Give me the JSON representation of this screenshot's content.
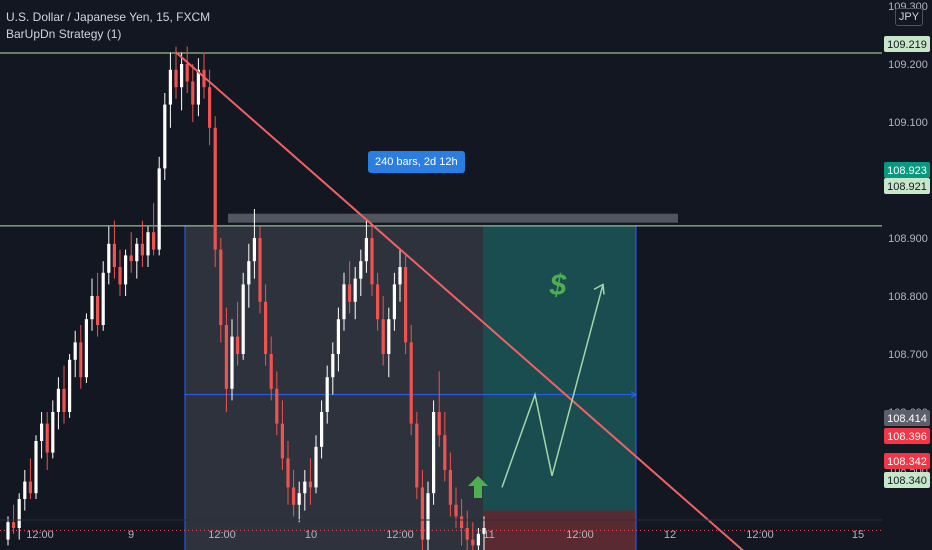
{
  "header": {
    "symbol_line": "U.S. Dollar / Japanese Yen, 15, FXCM",
    "indicator_line": "BarUpDn Strategy (1)",
    "currency": "JPY"
  },
  "range_label": "240 bars, 2d 12h",
  "colors": {
    "background": "#131722",
    "up": "#ffffff",
    "down": "#ef5350",
    "trendline": "#f06262",
    "level_line": "#b7e4a6",
    "mid_line": "#2962ff",
    "target_zone": "#26a69a",
    "stop_zone": "#ef5350",
    "arrow": "#4caf50"
  },
  "chart_data": {
    "type": "candlestick",
    "title": "U.S. Dollar / Japanese Yen, 15, FXCM",
    "ylim": [
      108.3,
      109.3
    ],
    "y_ticks": [
      "109.300",
      "109.200",
      "109.100",
      "109.000",
      "108.900",
      "108.800",
      "108.700",
      "108.600",
      "108.500"
    ],
    "x_ticks": [
      "12:00",
      "9",
      "12:00",
      "10",
      "12:00",
      "11",
      "12:00",
      "12",
      "12:00",
      "15"
    ],
    "price_labels": [
      {
        "value": "109.219",
        "kind": "level"
      },
      {
        "value": "108.923",
        "kind": "teal"
      },
      {
        "value": "108.921",
        "kind": "level"
      },
      {
        "value": "108.414",
        "kind": "gray"
      },
      {
        "value": "108.396",
        "kind": "red"
      },
      {
        "value": "108.342",
        "kind": "red"
      },
      {
        "value": "108.340",
        "kind": "level"
      }
    ],
    "horizontal_levels": [
      109.219,
      108.921,
      108.34
    ],
    "current_price": 108.396,
    "mid_level": 108.63,
    "resistance_zone": [
      108.921,
      108.935
    ],
    "support_zone": [
      108.33,
      108.345
    ],
    "target_zone": [
      108.43,
      108.921
    ],
    "stop_zone": [
      108.34,
      108.43
    ],
    "trendline": [
      {
        "x": "9 06:00",
        "y": 109.22
      },
      {
        "x": "12 10:00",
        "y": 108.34
      }
    ],
    "projection_path": [
      108.47,
      108.63,
      108.49,
      108.82
    ],
    "annotation": "$",
    "candles": [
      [
        108.38,
        108.42,
        108.37,
        108.41
      ],
      [
        108.41,
        108.44,
        108.39,
        108.4
      ],
      [
        108.4,
        108.46,
        108.38,
        108.45
      ],
      [
        108.45,
        108.5,
        108.43,
        108.48
      ],
      [
        108.48,
        108.52,
        108.45,
        108.46
      ],
      [
        108.46,
        108.56,
        108.45,
        108.55
      ],
      [
        108.55,
        108.6,
        108.52,
        108.58
      ],
      [
        108.58,
        108.6,
        108.5,
        108.53
      ],
      [
        108.53,
        108.62,
        108.52,
        108.6
      ],
      [
        108.6,
        108.66,
        108.57,
        108.64
      ],
      [
        108.64,
        108.68,
        108.58,
        108.6
      ],
      [
        108.6,
        108.7,
        108.59,
        108.69
      ],
      [
        108.69,
        108.74,
        108.66,
        108.72
      ],
      [
        108.72,
        108.75,
        108.64,
        108.66
      ],
      [
        108.66,
        108.77,
        108.65,
        108.76
      ],
      [
        108.76,
        108.83,
        108.74,
        108.8
      ],
      [
        108.8,
        108.84,
        108.73,
        108.75
      ],
      [
        108.75,
        108.86,
        108.74,
        108.84
      ],
      [
        108.84,
        108.92,
        108.82,
        108.89
      ],
      [
        108.89,
        108.93,
        108.83,
        108.85
      ],
      [
        108.85,
        108.88,
        108.8,
        108.82
      ],
      [
        108.82,
        108.88,
        108.8,
        108.87
      ],
      [
        108.87,
        108.91,
        108.84,
        108.86
      ],
      [
        108.86,
        108.9,
        108.83,
        108.89
      ],
      [
        108.89,
        108.93,
        108.85,
        108.87
      ],
      [
        108.87,
        108.92,
        108.85,
        108.91
      ],
      [
        108.91,
        108.96,
        108.87,
        108.88
      ],
      [
        108.88,
        109.04,
        108.87,
        109.02
      ],
      [
        109.02,
        109.15,
        109.0,
        109.13
      ],
      [
        109.13,
        109.22,
        109.09,
        109.19
      ],
      [
        109.19,
        109.23,
        109.14,
        109.16
      ],
      [
        109.16,
        109.22,
        109.12,
        109.2
      ],
      [
        109.2,
        109.23,
        109.15,
        109.17
      ],
      [
        109.17,
        109.2,
        109.1,
        109.13
      ],
      [
        109.13,
        109.21,
        109.11,
        109.19
      ],
      [
        109.19,
        109.22,
        109.14,
        109.16
      ],
      [
        109.16,
        109.19,
        109.06,
        109.09
      ],
      [
        109.09,
        109.11,
        108.85,
        108.88
      ],
      [
        108.88,
        108.9,
        108.72,
        108.75
      ],
      [
        108.75,
        108.78,
        108.6,
        108.64
      ],
      [
        108.64,
        108.76,
        108.62,
        108.73
      ],
      [
        108.73,
        108.79,
        108.68,
        108.7
      ],
      [
        108.7,
        108.84,
        108.69,
        108.82
      ],
      [
        108.82,
        108.89,
        108.78,
        108.86
      ],
      [
        108.86,
        108.95,
        108.83,
        108.9
      ],
      [
        108.9,
        108.92,
        108.77,
        108.79
      ],
      [
        108.79,
        108.82,
        108.68,
        108.7
      ],
      [
        108.7,
        108.73,
        108.62,
        108.64
      ],
      [
        108.64,
        108.67,
        108.56,
        108.58
      ],
      [
        108.58,
        108.62,
        108.5,
        108.52
      ],
      [
        108.52,
        108.55,
        108.44,
        108.47
      ],
      [
        108.47,
        108.5,
        108.42,
        108.44
      ],
      [
        108.44,
        108.48,
        108.41,
        108.46
      ],
      [
        108.46,
        108.5,
        108.43,
        108.48
      ],
      [
        108.48,
        108.52,
        108.44,
        108.47
      ],
      [
        108.47,
        108.56,
        108.46,
        108.54
      ],
      [
        108.54,
        108.62,
        108.52,
        108.6
      ],
      [
        108.6,
        108.68,
        108.58,
        108.66
      ],
      [
        108.66,
        108.72,
        108.63,
        108.7
      ],
      [
        108.7,
        108.78,
        108.67,
        108.76
      ],
      [
        108.76,
        108.84,
        108.74,
        108.82
      ],
      [
        108.82,
        108.86,
        108.77,
        108.79
      ],
      [
        108.79,
        108.85,
        108.76,
        108.83
      ],
      [
        108.83,
        108.88,
        108.8,
        108.86
      ],
      [
        108.86,
        108.93,
        108.84,
        108.9
      ],
      [
        108.9,
        108.92,
        108.8,
        108.82
      ],
      [
        108.82,
        108.84,
        108.74,
        108.76
      ],
      [
        108.76,
        108.8,
        108.68,
        108.7
      ],
      [
        108.7,
        108.78,
        108.66,
        108.76
      ],
      [
        108.76,
        108.84,
        108.74,
        108.82
      ],
      [
        108.82,
        108.88,
        108.79,
        108.85
      ],
      [
        108.85,
        108.87,
        108.7,
        108.72
      ],
      [
        108.72,
        108.75,
        108.56,
        108.58
      ],
      [
        108.58,
        108.6,
        108.45,
        108.47
      ],
      [
        108.47,
        108.5,
        108.36,
        108.38
      ],
      [
        108.38,
        108.48,
        108.36,
        108.46
      ],
      [
        108.46,
        108.62,
        108.44,
        108.6
      ],
      [
        108.6,
        108.67,
        108.54,
        108.56
      ],
      [
        108.56,
        108.6,
        108.48,
        108.5
      ],
      [
        108.5,
        108.53,
        108.42,
        108.44
      ],
      [
        108.44,
        108.47,
        108.4,
        108.42
      ],
      [
        108.42,
        108.45,
        108.37,
        108.4
      ],
      [
        108.4,
        108.43,
        108.36,
        108.38
      ],
      [
        108.38,
        108.41,
        108.35,
        108.37
      ],
      [
        108.37,
        108.4,
        108.34,
        108.39
      ],
      [
        108.39,
        108.42,
        108.36,
        108.4
      ]
    ]
  }
}
